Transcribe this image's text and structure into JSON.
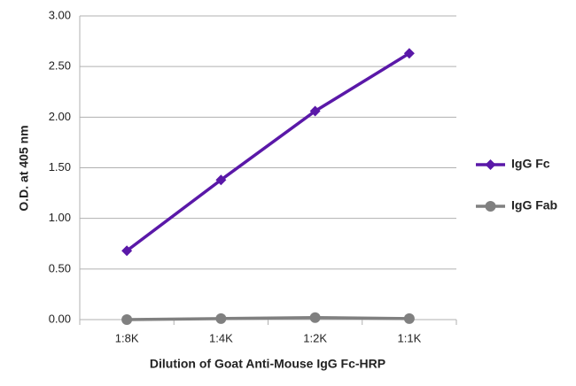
{
  "chart_data": {
    "type": "line",
    "x_label": "Dilution of Goat Anti-Mouse IgG Fc-HRP",
    "y_label": "O.D. at 405 nm",
    "categories": [
      "1:8K",
      "1:4K",
      "1:2K",
      "1:1K"
    ],
    "series": [
      {
        "name": "IgG Fc",
        "color": "#5a18a8",
        "marker": "diamond",
        "values": [
          0.68,
          1.38,
          2.06,
          2.63
        ]
      },
      {
        "name": "IgG Fab",
        "color": "#808080",
        "marker": "circle",
        "values": [
          0.0,
          0.01,
          0.02,
          0.01
        ]
      }
    ],
    "ylim": [
      0,
      3
    ],
    "yticks": [
      {
        "value": 0,
        "label": "0.00"
      },
      {
        "value": 0.5,
        "label": "0.50"
      },
      {
        "value": 1,
        "label": "1.00"
      },
      {
        "value": 1.5,
        "label": "1.50"
      },
      {
        "value": 2,
        "label": "2.00"
      },
      {
        "value": 2.5,
        "label": "2.50"
      },
      {
        "value": 3,
        "label": "3.00"
      }
    ],
    "grid": true,
    "legend": "right"
  }
}
